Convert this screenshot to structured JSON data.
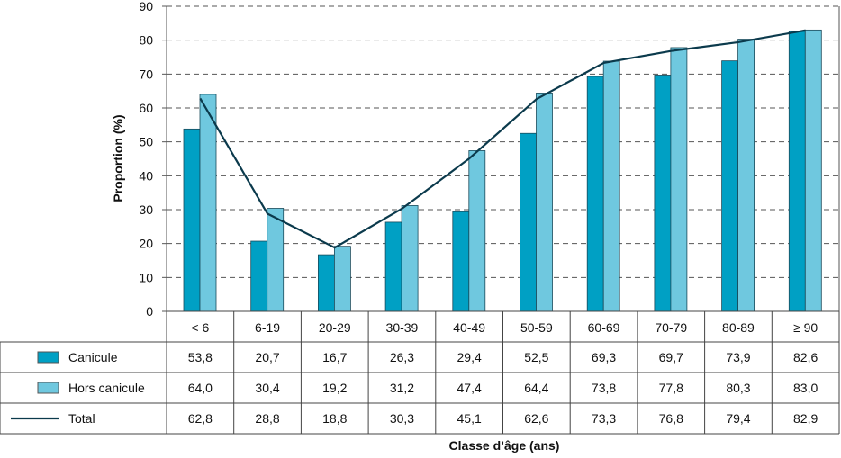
{
  "chart_data": {
    "type": "bar",
    "title": "",
    "ylabel": "Proportion (%)",
    "xlabel": "Classe d’âge (ans)",
    "ylim": [
      0,
      90
    ],
    "yticks": [
      0,
      10,
      20,
      30,
      40,
      50,
      60,
      70,
      80,
      90
    ],
    "grid": true,
    "categories": [
      "< 6",
      "6-19",
      "20-29",
      "30-39",
      "40-49",
      "50-59",
      "60-69",
      "70-79",
      "80-89",
      "≥ 90"
    ],
    "series": [
      {
        "name": "Canicule",
        "kind": "bar",
        "color": "#00a0c4",
        "values": [
          53.8,
          20.7,
          16.7,
          26.3,
          29.4,
          52.5,
          69.3,
          69.7,
          73.9,
          82.6
        ],
        "labels": [
          "53,8",
          "20,7",
          "16,7",
          "26,3",
          "29,4",
          "52,5",
          "69,3",
          "69,7",
          "73,9",
          "82,6"
        ]
      },
      {
        "name": "Hors canicule",
        "kind": "bar",
        "color": "#6fc8df",
        "values": [
          64.0,
          30.4,
          19.2,
          31.2,
          47.4,
          64.4,
          73.8,
          77.8,
          80.3,
          83.0
        ],
        "labels": [
          "64,0",
          "30,4",
          "19,2",
          "31,2",
          "47,4",
          "64,4",
          "73,8",
          "77,8",
          "80,3",
          "83,0"
        ]
      },
      {
        "name": "Total",
        "kind": "line",
        "color": "#0b3a4c",
        "values": [
          62.8,
          28.8,
          18.8,
          30.3,
          45.1,
          62.6,
          73.3,
          76.8,
          79.4,
          82.9
        ],
        "labels": [
          "62,8",
          "28,8",
          "18,8",
          "30,3",
          "45,1",
          "62,6",
          "73,3",
          "76,8",
          "79,4",
          "82,9"
        ]
      }
    ],
    "legend": "data-table-left"
  }
}
